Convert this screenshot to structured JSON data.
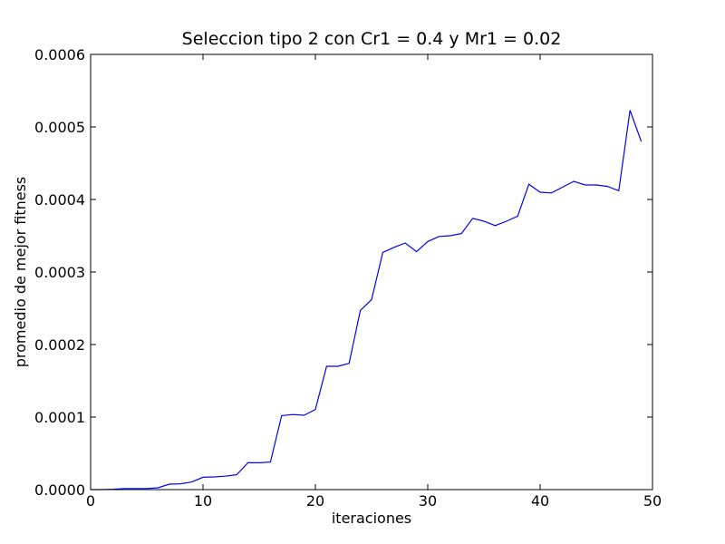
{
  "chart_data": {
    "type": "line",
    "title": "Seleccion tipo 2 con Cr1 = 0.4 y Mr1 = 0.02",
    "xlabel": "iteraciones",
    "ylabel": "promedio de mejor fitness",
    "xlim": [
      0,
      50
    ],
    "ylim": [
      0,
      0.0006
    ],
    "xticks": [
      "0",
      "10",
      "20",
      "30",
      "40",
      "50"
    ],
    "yticks": [
      "0.0000",
      "0.0001",
      "0.0002",
      "0.0003",
      "0.0004",
      "0.0005",
      "0.0006"
    ],
    "grid": false,
    "colors": {
      "line": "#0000ff",
      "axes": "#000000",
      "background": "#ffffff"
    },
    "series": [
      {
        "x": [
          0,
          1,
          2,
          3,
          4,
          5,
          6,
          7,
          8,
          9,
          10,
          11,
          12,
          13,
          14,
          15,
          16,
          17,
          18,
          19,
          20,
          21,
          22,
          23,
          24,
          25,
          26,
          27,
          28,
          29,
          30,
          31,
          32,
          33,
          34,
          35,
          36,
          37,
          38,
          39,
          40,
          41,
          42,
          43,
          44,
          45,
          46,
          47,
          48,
          49
        ],
        "values": [
          0.0,
          0.0,
          5e-07,
          1.5e-06,
          1.5e-06,
          1.5e-06,
          2.5e-06,
          7.5e-06,
          8e-06,
          1.05e-05,
          1.7e-05,
          1.75e-05,
          1.85e-05,
          2.05e-05,
          3.7e-05,
          3.7e-05,
          3.8e-05,
          0.000102,
          0.0001035,
          0.0001025,
          0.0001105,
          0.00017,
          0.00017,
          0.000174,
          0.000247,
          0.000262,
          0.000327,
          0.000334,
          0.00034,
          0.000328,
          0.000342,
          0.000349,
          0.00035,
          0.000353,
          0.000374,
          0.00037,
          0.000364,
          0.00037,
          0.000377,
          0.000421,
          0.00041,
          0.000409,
          0.000417,
          0.000425,
          0.00042,
          0.00042,
          0.000418,
          0.000412,
          0.000523,
          0.00048
        ]
      }
    ]
  }
}
